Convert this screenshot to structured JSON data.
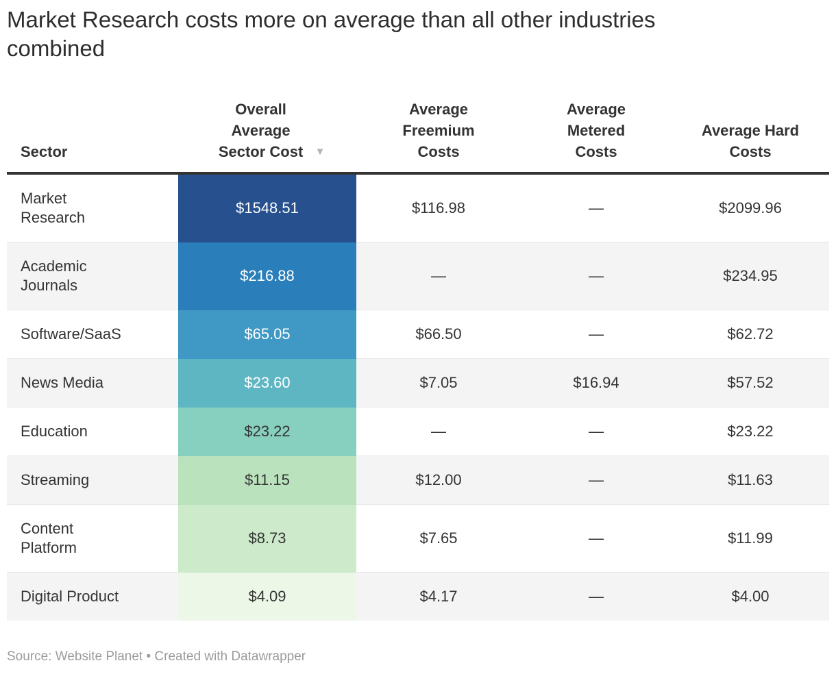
{
  "title": "Market Research costs more on average than all other industries combined",
  "source_note": "Source: Website Planet • Created with Datawrapper",
  "colors": {
    "header_text": "#333333",
    "header_rule": "#333333",
    "row_stripe": "#f4f4f4",
    "row_divider": "#e8e8e8",
    "source_text": "#9b9b9b",
    "heatmap_scale": [
      "#27508f",
      "#2a7fba",
      "#4099c4",
      "#5fb6c3",
      "#87cfbf",
      "#bae2bc",
      "#cdeacb",
      "#edf7e8"
    ]
  },
  "table": {
    "sort_icon": "▼",
    "headers": {
      "sector": "Sector",
      "overall": "Overall Average Sector Cost",
      "freemium": "Average Freemium Costs",
      "metered": "Average Metered Costs",
      "hard": "Average Hard Costs"
    },
    "rows": [
      {
        "sector": "Market Research",
        "overall": "$1548.51",
        "freemium": "$116.98",
        "metered": "—",
        "hard": "$2099.96",
        "style": "background:#27508f;color:#ffffff"
      },
      {
        "sector": "Academic Journals",
        "overall": "$216.88",
        "freemium": "—",
        "metered": "—",
        "hard": "$234.95",
        "style": "background:#2a7fba;color:#ffffff"
      },
      {
        "sector": "Software/SaaS",
        "overall": "$65.05",
        "freemium": "$66.50",
        "metered": "—",
        "hard": "$62.72",
        "style": "background:#4099c4;color:#ffffff"
      },
      {
        "sector": "News Media",
        "overall": "$23.60",
        "freemium": "$7.05",
        "metered": "$16.94",
        "hard": "$57.52",
        "style": "background:#5fb6c3;color:#ffffff"
      },
      {
        "sector": "Education",
        "overall": "$23.22",
        "freemium": "—",
        "metered": "—",
        "hard": "$23.22",
        "style": "background:#87cfbf;color:#333333"
      },
      {
        "sector": "Streaming",
        "overall": "$11.15",
        "freemium": "$12.00",
        "metered": "—",
        "hard": "$11.63",
        "style": "background:#bae2bc;color:#333333"
      },
      {
        "sector": "Content Platform",
        "overall": "$8.73",
        "freemium": "$7.65",
        "metered": "—",
        "hard": "$11.99",
        "style": "background:#cdeacb;color:#333333"
      },
      {
        "sector": "Digital Product",
        "overall": "$4.09",
        "freemium": "$4.17",
        "metered": "—",
        "hard": "$4.00",
        "style": "background:#edf7e8;color:#333333"
      }
    ]
  },
  "chart_data": {
    "type": "table",
    "title": "Market Research costs more on average than all other industries combined",
    "columns": [
      "Sector",
      "Overall Average Sector Cost",
      "Average Freemium Costs",
      "Average Metered Costs",
      "Average Hard Costs"
    ],
    "rows": [
      [
        "Market Research",
        1548.51,
        116.98,
        null,
        2099.96
      ],
      [
        "Academic Journals",
        216.88,
        null,
        null,
        234.95
      ],
      [
        "Software/SaaS",
        65.05,
        66.5,
        null,
        62.72
      ],
      [
        "News Media",
        23.6,
        7.05,
        16.94,
        57.52
      ],
      [
        "Education",
        23.22,
        null,
        null,
        23.22
      ],
      [
        "Streaming",
        11.15,
        12.0,
        null,
        11.63
      ],
      [
        "Content Platform",
        8.73,
        7.65,
        null,
        11.99
      ],
      [
        "Digital Product",
        4.09,
        4.17,
        null,
        4.0
      ]
    ],
    "currency": "USD",
    "heatmap_column": "Overall Average Sector Cost",
    "sorted_by": "Overall Average Sector Cost",
    "sort_direction": "descending",
    "source": "Website Planet",
    "tool": "Datawrapper"
  }
}
